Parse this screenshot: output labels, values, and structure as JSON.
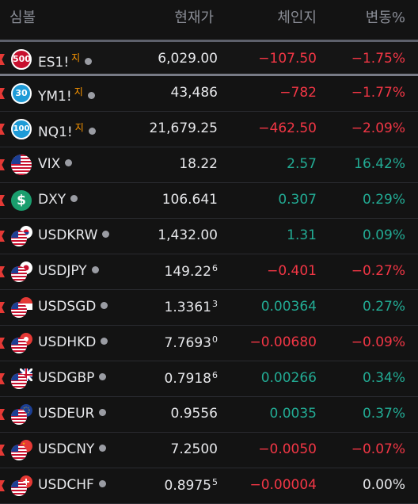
{
  "header": {
    "symbol": "심볼",
    "price": "현재가",
    "change": "체인지",
    "pct": "변동%"
  },
  "rows": [
    {
      "symbol": "ES1!",
      "badge": "지",
      "logo": "500",
      "logo_color": "#c8102e",
      "price": "6,029.00",
      "price_sup": "",
      "change": "−107.50",
      "pct": "−1.75%",
      "dir": "neg",
      "mark": true
    },
    {
      "symbol": "YM1!",
      "badge": "지",
      "logo": "30",
      "logo_color": "#1e9bd7",
      "price": "43,486",
      "price_sup": "",
      "change": "−782",
      "pct": "−1.77%",
      "dir": "neg",
      "mark": true
    },
    {
      "symbol": "NQ1!",
      "badge": "지",
      "logo": "100",
      "logo_color": "#1e9bd7",
      "price": "21,679.25",
      "price_sup": "",
      "change": "−462.50",
      "pct": "−2.09%",
      "dir": "neg",
      "mark": true
    },
    {
      "symbol": "VIX",
      "badge": "",
      "logo": "us-flag",
      "price": "18.22",
      "price_sup": "",
      "change": "2.57",
      "pct": "16.42%",
      "dir": "pos",
      "mark": true
    },
    {
      "symbol": "DXY",
      "badge": "",
      "logo": "dollar",
      "logo_color": "#1a9e6e",
      "price": "106.641",
      "price_sup": "",
      "change": "0.307",
      "pct": "0.29%",
      "dir": "pos",
      "mark": true
    },
    {
      "symbol": "USDKRW",
      "badge": "",
      "logo": "us-kr",
      "price": "1,432.00",
      "price_sup": "",
      "change": "1.31",
      "pct": "0.09%",
      "dir": "pos",
      "mark": true
    },
    {
      "symbol": "USDJPY",
      "badge": "",
      "logo": "us-jp",
      "price": "149.22",
      "price_sup": "6",
      "change": "−0.401",
      "pct": "−0.27%",
      "dir": "neg",
      "mark": true
    },
    {
      "symbol": "USDSGD",
      "badge": "",
      "logo": "us-sg",
      "price": "1.3361",
      "price_sup": "3",
      "change": "0.00364",
      "pct": "0.27%",
      "dir": "pos",
      "mark": true
    },
    {
      "symbol": "USDHKD",
      "badge": "",
      "logo": "us-hk",
      "price": "7.7693",
      "price_sup": "0",
      "change": "−0.00680",
      "pct": "−0.09%",
      "dir": "neg",
      "mark": true
    },
    {
      "symbol": "USDGBP",
      "badge": "",
      "logo": "us-gb",
      "price": "0.7918",
      "price_sup": "6",
      "change": "0.00266",
      "pct": "0.34%",
      "dir": "pos",
      "mark": true
    },
    {
      "symbol": "USDEUR",
      "badge": "",
      "logo": "us-eu",
      "price": "0.9556",
      "price_sup": "",
      "change": "0.0035",
      "pct": "0.37%",
      "dir": "pos",
      "mark": true
    },
    {
      "symbol": "USDCNY",
      "badge": "",
      "logo": "us-cn",
      "price": "7.2500",
      "price_sup": "",
      "change": "−0.0050",
      "pct": "−0.07%",
      "dir": "neg",
      "mark": true
    },
    {
      "symbol": "USDCHF",
      "badge": "",
      "logo": "us-ch",
      "price": "0.8975",
      "price_sup": "5",
      "change": "−0.00004",
      "pct": "0.00%",
      "dir": "neg",
      "pct_dir": "neu",
      "mark": true
    }
  ]
}
